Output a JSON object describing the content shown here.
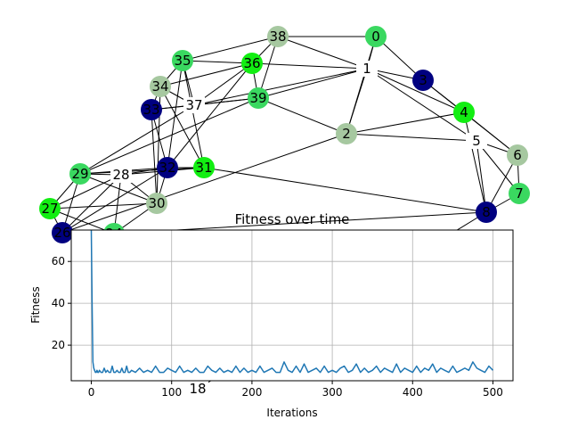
{
  "graph": {
    "nodes": [
      {
        "id": "0",
        "label": "0",
        "color": "#3ad860"
      },
      {
        "id": "1",
        "label": "1",
        "color": null
      },
      {
        "id": "2",
        "label": "2",
        "color": "#a6c8a0"
      },
      {
        "id": "3",
        "label": "3",
        "color": "#000080"
      },
      {
        "id": "4",
        "label": "4",
        "color": "#12ee12"
      },
      {
        "id": "5",
        "label": "5",
        "color": null
      },
      {
        "id": "6",
        "label": "6",
        "color": "#a6c8a0"
      },
      {
        "id": "7",
        "label": "7",
        "color": "#3ad860"
      },
      {
        "id": "8",
        "label": "8",
        "color": "#000080"
      },
      {
        "id": "18",
        "label": "18",
        "color": null
      },
      {
        "id": "24",
        "label": "24",
        "color": "#3ad860"
      },
      {
        "id": "26",
        "label": "26",
        "color": "#000080"
      },
      {
        "id": "27",
        "label": "27",
        "color": "#12ee12"
      },
      {
        "id": "28",
        "label": "28",
        "color": null
      },
      {
        "id": "29",
        "label": "29",
        "color": "#3ad860"
      },
      {
        "id": "30",
        "label": "30",
        "color": "#a6c8a0"
      },
      {
        "id": "31",
        "label": "31",
        "color": "#12ee12"
      },
      {
        "id": "32",
        "label": "32",
        "color": "#000080"
      },
      {
        "id": "33",
        "label": "33",
        "color": "#000080"
      },
      {
        "id": "34",
        "label": "34",
        "color": "#a6c8a0"
      },
      {
        "id": "35",
        "label": "35",
        "color": "#3ad860"
      },
      {
        "id": "36",
        "label": "36",
        "color": "#12ee12"
      },
      {
        "id": "37",
        "label": "37",
        "color": null
      },
      {
        "id": "38",
        "label": "38",
        "color": "#a6c8a0"
      },
      {
        "id": "39",
        "label": "39",
        "color": "#3ad860"
      }
    ],
    "edges": [
      [
        "38",
        "0"
      ],
      [
        "38",
        "36"
      ],
      [
        "38",
        "35"
      ],
      [
        "38",
        "1"
      ],
      [
        "38",
        "39"
      ],
      [
        "0",
        "1"
      ],
      [
        "0",
        "2"
      ],
      [
        "0",
        "3"
      ],
      [
        "1",
        "3"
      ],
      [
        "1",
        "36"
      ],
      [
        "1",
        "39"
      ],
      [
        "1",
        "37"
      ],
      [
        "1",
        "4"
      ],
      [
        "1",
        "2"
      ],
      [
        "1",
        "5"
      ],
      [
        "3",
        "4"
      ],
      [
        "3",
        "6"
      ],
      [
        "4",
        "2"
      ],
      [
        "4",
        "6"
      ],
      [
        "4",
        "8"
      ],
      [
        "2",
        "5"
      ],
      [
        "2",
        "39"
      ],
      [
        "2",
        "26"
      ],
      [
        "5",
        "6"
      ],
      [
        "5",
        "8"
      ],
      [
        "5",
        "7"
      ],
      [
        "6",
        "7"
      ],
      [
        "6",
        "8"
      ],
      [
        "7",
        "8"
      ],
      [
        "36",
        "35"
      ],
      [
        "36",
        "37"
      ],
      [
        "36",
        "34"
      ],
      [
        "36",
        "39"
      ],
      [
        "36",
        "32"
      ],
      [
        "35",
        "34"
      ],
      [
        "35",
        "37"
      ],
      [
        "35",
        "32"
      ],
      [
        "35",
        "31"
      ],
      [
        "34",
        "33"
      ],
      [
        "34",
        "37"
      ],
      [
        "34",
        "31"
      ],
      [
        "34",
        "30"
      ],
      [
        "33",
        "32"
      ],
      [
        "33",
        "30"
      ],
      [
        "33",
        "37"
      ],
      [
        "37",
        "39"
      ],
      [
        "37",
        "29"
      ],
      [
        "39",
        "33"
      ],
      [
        "39",
        "29"
      ],
      [
        "32",
        "28"
      ],
      [
        "32",
        "31"
      ],
      [
        "32",
        "29"
      ],
      [
        "32",
        "30"
      ],
      [
        "32",
        "26"
      ],
      [
        "31",
        "28"
      ],
      [
        "31",
        "29"
      ],
      [
        "31",
        "8"
      ],
      [
        "28",
        "29"
      ],
      [
        "28",
        "30"
      ],
      [
        "28",
        "27"
      ],
      [
        "28",
        "26"
      ],
      [
        "28",
        "24"
      ],
      [
        "29",
        "30"
      ],
      [
        "29",
        "27"
      ],
      [
        "29",
        "26"
      ],
      [
        "30",
        "27"
      ],
      [
        "30",
        "24"
      ],
      [
        "27",
        "26"
      ],
      [
        "27",
        "24"
      ],
      [
        "26",
        "24"
      ],
      [
        "8",
        "18"
      ],
      [
        "8",
        "24"
      ]
    ]
  },
  "chart_data": {
    "type": "line",
    "title": "Fitness over time",
    "xlabel": "Iterations",
    "ylabel": "Fitness",
    "xlim": [
      -25,
      525
    ],
    "ylim": [
      3,
      75
    ],
    "xticks": [
      0,
      100,
      200,
      300,
      400,
      500
    ],
    "yticks": [
      20,
      40,
      60
    ],
    "grid": true,
    "series": [
      {
        "color": "#1f77b4",
        "x": [
          0,
          1,
          2,
          3,
          4,
          5,
          6,
          7,
          8,
          9,
          10,
          12,
          14,
          16,
          18,
          20,
          22,
          24,
          26,
          28,
          30,
          32,
          34,
          36,
          38,
          40,
          42,
          44,
          46,
          48,
          50,
          55,
          60,
          65,
          70,
          75,
          80,
          85,
          90,
          95,
          100,
          105,
          110,
          115,
          120,
          125,
          130,
          135,
          140,
          145,
          150,
          155,
          160,
          165,
          170,
          175,
          180,
          185,
          190,
          195,
          200,
          205,
          210,
          215,
          220,
          225,
          230,
          235,
          240,
          245,
          250,
          255,
          260,
          265,
          270,
          275,
          280,
          285,
          290,
          295,
          300,
          305,
          310,
          315,
          320,
          325,
          330,
          335,
          340,
          345,
          350,
          355,
          360,
          365,
          370,
          375,
          380,
          385,
          390,
          395,
          400,
          405,
          410,
          415,
          420,
          425,
          430,
          435,
          440,
          445,
          450,
          455,
          460,
          465,
          470,
          475,
          480,
          485,
          490,
          495,
          500
        ],
        "y": [
          75,
          40,
          12,
          9,
          8,
          7,
          7,
          8,
          7,
          7,
          8,
          7,
          7,
          9,
          7,
          8,
          7,
          7,
          10,
          7,
          7,
          8,
          7,
          7,
          9,
          7,
          7,
          10,
          7,
          7,
          8,
          7,
          9,
          7,
          8,
          7,
          10,
          7,
          7,
          9,
          8,
          7,
          10,
          7,
          8,
          7,
          9,
          7,
          7,
          10,
          8,
          7,
          9,
          7,
          8,
          7,
          10,
          7,
          9,
          7,
          8,
          7,
          10,
          7,
          8,
          9,
          7,
          7,
          12,
          8,
          7,
          10,
          7,
          11,
          7,
          8,
          9,
          7,
          10,
          7,
          8,
          7,
          9,
          10,
          7,
          8,
          11,
          7,
          9,
          7,
          8,
          10,
          7,
          9,
          8,
          7,
          11,
          7,
          9,
          8,
          7,
          10,
          7,
          9,
          8,
          11,
          7,
          9,
          8,
          7,
          10,
          7,
          8,
          9,
          8,
          12,
          9,
          8,
          7,
          10,
          8
        ]
      }
    ]
  }
}
